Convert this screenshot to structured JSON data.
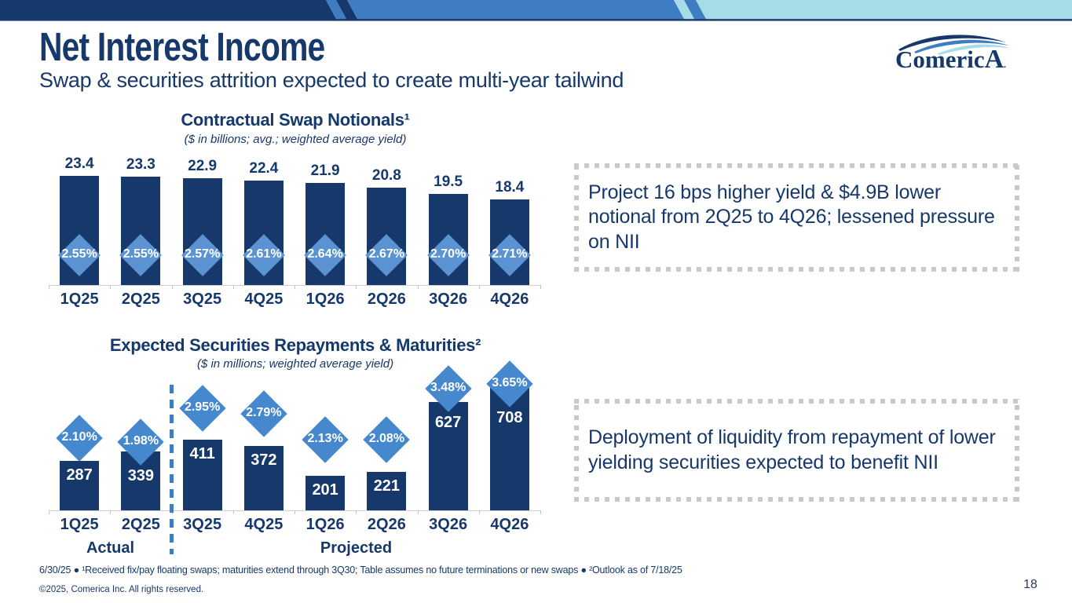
{
  "slide": {
    "header_title": "Net Interest Income",
    "header_subtitle": "Swap & securities attrition expected to create multi-year tailwind",
    "page_number": "18",
    "footnote": "6/30/25 ● ¹Received fix/pay floating swaps; maturities extend through 3Q30; Table assumes no future terminations or new swaps ● ²Outlook as of 7/18/25",
    "copyright": "©2025, Comerica Inc. All rights reserved."
  },
  "logo": {
    "part1": "Comeric",
    "part2": "A",
    "registered_dot": "."
  },
  "callouts": [
    {
      "text": "Project 16 bps higher yield & $4.9B lower notional from 2Q25 to 4Q26; lessened pressure on NII"
    },
    {
      "text": "Deployment of liquidity from repayment of lower yielding securities expected to benefit NII"
    }
  ],
  "chart_data": [
    {
      "type": "bar",
      "title": "Contractual Swap Notionals¹",
      "subtitle": "($ in billions; avg.; weighted average yield)",
      "categories": [
        "1Q25",
        "2Q25",
        "3Q25",
        "4Q25",
        "1Q26",
        "2Q26",
        "3Q26",
        "4Q26"
      ],
      "series": [
        {
          "name": "Average swap notional ($B)",
          "values": [
            23.4,
            23.3,
            22.9,
            22.4,
            21.9,
            20.8,
            19.5,
            18.4
          ]
        },
        {
          "name": "Weighted average yield",
          "values": [
            "2.55%",
            "2.55%",
            "2.57%",
            "2.61%",
            "2.64%",
            "2.67%",
            "2.70%",
            "2.71%"
          ]
        }
      ],
      "value_labels": "above bars",
      "yield_marker": "diamond inside bars",
      "ylim": [
        0,
        25
      ],
      "grid": false,
      "legend": "none"
    },
    {
      "type": "bar",
      "title": "Expected Securities Repayments & Maturities²",
      "subtitle": "($ in millions; weighted average yield)",
      "categories": [
        "1Q25",
        "2Q25",
        "3Q25",
        "4Q25",
        "1Q26",
        "2Q26",
        "3Q26",
        "4Q26"
      ],
      "series": [
        {
          "name": "Repayments & maturities ($M)",
          "values": [
            287,
            339,
            411,
            372,
            201,
            221,
            627,
            708
          ]
        },
        {
          "name": "Weighted average yield",
          "values": [
            "2.10%",
            "1.98%",
            "2.95%",
            "2.79%",
            "2.13%",
            "2.08%",
            "3.48%",
            "3.65%"
          ]
        }
      ],
      "value_labels": "inside bars",
      "yield_marker": "diamond above bars",
      "group_labels": [
        {
          "label": "Actual",
          "categories": [
            "1Q25",
            "2Q25"
          ]
        },
        {
          "label": "Projected",
          "categories": [
            "3Q25",
            "4Q25",
            "1Q26",
            "2Q26",
            "3Q26",
            "4Q26"
          ]
        }
      ],
      "separator": "dashed line between 2Q25 and 3Q25",
      "ylim": [
        0,
        750
      ],
      "grid": false,
      "legend": "none"
    }
  ],
  "colors": {
    "navy": "#16386B",
    "medium_blue": "#3E7DC2",
    "light_cyan": "#A6DCE8",
    "diamond_blue_chart1": "#5B93D2",
    "diamond_blue_chart2": "#4688CD",
    "axis_gray": "#CFCFCF",
    "dotted_border_gray": "#C9C9C9",
    "white": "#FFFFFF"
  }
}
